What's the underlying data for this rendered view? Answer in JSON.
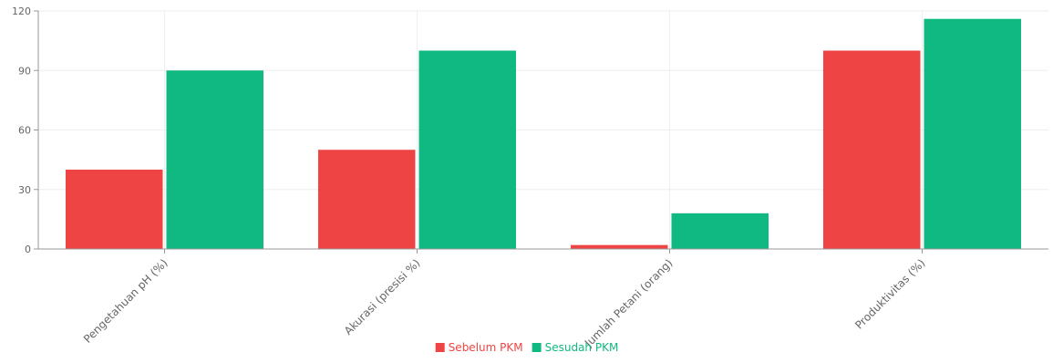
{
  "chart_data": {
    "type": "bar",
    "categories": [
      "Pengetahuan pH (%)",
      "Akurasi (presisi %)",
      "Jumlah Petani (orang)",
      "Produktivitas (%)"
    ],
    "series": [
      {
        "name": "Sebelum PKM",
        "values": [
          40,
          50,
          2,
          100
        ],
        "color": "#ef4444"
      },
      {
        "name": "Sesudah PKM",
        "values": [
          90,
          100,
          18,
          116
        ],
        "color": "#10b981"
      }
    ],
    "yticks": [
      0,
      30,
      60,
      90,
      120
    ],
    "ylim": [
      0,
      120
    ],
    "grid": true,
    "legend": "bottom-center",
    "xlabel": "",
    "ylabel": "",
    "title": ""
  }
}
